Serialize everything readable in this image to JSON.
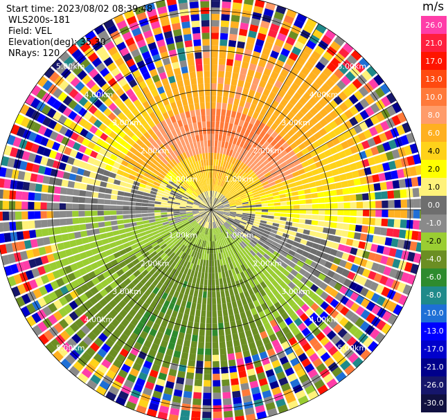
{
  "header": {
    "start_time": "Start time: 2023/08/02 08:39:48",
    "instrument": "WLS200s-181",
    "field": "Field: VEL",
    "elevation": "Elevation(deg): 35.30",
    "nrays": "NRays: 120"
  },
  "chart_data": {
    "type": "heatmap",
    "subtype": "polar-ppi",
    "title": "",
    "field": "VEL",
    "elevation_deg": 35.3,
    "nrays": 120,
    "range_rings_km": [
      1.0,
      2.0,
      3.0,
      4.0,
      5.0
    ],
    "ring_labels": [
      "1.00km",
      "2.00km",
      "3.00km",
      "4.00km",
      "5.00km"
    ],
    "max_range_km": 5.4,
    "grid": true,
    "colorbar": {
      "unit": "m/s",
      "ticks": [
        26.0,
        21.0,
        17.0,
        13.0,
        10.0,
        8.0,
        6.0,
        4.0,
        2.0,
        1.0,
        0.0,
        -1.0,
        -2.0,
        -4.0,
        -6.0,
        -8.0,
        -10.0,
        -13.0,
        -17.0,
        -21.0,
        -26.0,
        -30.0
      ],
      "tick_labels": [
        "26.0",
        "21.0",
        "17.0",
        "13.0",
        "10.0",
        "8.0",
        "6.0",
        "4.0",
        "2.0",
        "1.0",
        "0.0",
        "-1.0",
        "-2.0",
        "-4.0",
        "-6.0",
        "-8.0",
        "-10.0",
        "-13.0",
        "-17.0",
        "-21.0",
        "-26.0",
        "-30.0"
      ],
      "colors": [
        "#ff3da8",
        "#ff1f3f",
        "#ff1400",
        "#ff4a10",
        "#ff7a3a",
        "#ff9c6a",
        "#ffb020",
        "#ffd21a",
        "#ffff00",
        "#fff27a",
        "#6e6e6e",
        "#8a8a8a",
        "#9acd32",
        "#6b8e23",
        "#2e8b2e",
        "#1f8a8a",
        "#1e6fd6",
        "#0000ff",
        "#0000cc",
        "#00008b",
        "#16166b",
        "#101040"
      ]
    },
    "velocity_pattern": {
      "near_range_km": [
        0,
        0.55
      ],
      "description_values_ms": {
        "approaching_sector": -4.0,
        "receding_sector": 4.0,
        "noise_region_start_km": 3.6
      }
    }
  }
}
